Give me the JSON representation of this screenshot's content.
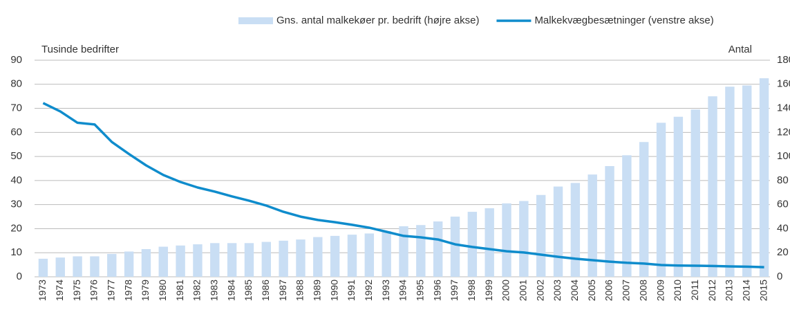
{
  "chart_data": {
    "type": "bar_line",
    "y_label": "Tusinde bedrifter",
    "y2_label": "Antal",
    "categories": [
      "1973",
      "1974",
      "1975",
      "1976",
      "1977",
      "1978",
      "1979",
      "1980",
      "1981",
      "1982",
      "1983",
      "1984",
      "1985",
      "1986",
      "1987",
      "1988",
      "1989",
      "1990",
      "1991",
      "1992",
      "1993",
      "1994",
      "1995",
      "1996",
      "1997",
      "1998",
      "1999",
      "2000",
      "2001",
      "2002",
      "2003",
      "2004",
      "2005",
      "2006",
      "2007",
      "2008",
      "2009",
      "2010",
      "2011",
      "2012",
      "2013",
      "2014",
      "2015"
    ],
    "series": [
      {
        "name": "Gns. antal malkekøer pr. bedrift (højre akse)",
        "type": "bar",
        "axis": "y2",
        "color": "#c9def4",
        "values": [
          15,
          16,
          17,
          17,
          19,
          21,
          23,
          25,
          26,
          27,
          28,
          28,
          28,
          29,
          30,
          31,
          33,
          34,
          35,
          36,
          38,
          42,
          43,
          46,
          50,
          54,
          57,
          61,
          63,
          68,
          75,
          78,
          85,
          92,
          101,
          112,
          128,
          133,
          139,
          150,
          158,
          159,
          165
        ]
      },
      {
        "name": "Malkekvægbesætninger (venstre akse)",
        "type": "line",
        "color": "#0f8ccc",
        "values": [
          72.2,
          68.7,
          64,
          63.3,
          56,
          51,
          46.3,
          42.3,
          39.4,
          37.1,
          35.4,
          33.4,
          31.6,
          29.6,
          27,
          25,
          23.6,
          22.7,
          21.6,
          20.4,
          18.7,
          17,
          16.4,
          15.5,
          13.5,
          12.4,
          11.5,
          10.6,
          10.1,
          9.2,
          8.3,
          7.5,
          6.9,
          6.3,
          5.8,
          5.5,
          4.9,
          4.7,
          4.6,
          4.5,
          4.3,
          4.2,
          4.0
        ]
      }
    ],
    "ylim": [
      0,
      90
    ],
    "yticks": [
      0,
      10,
      20,
      30,
      40,
      50,
      60,
      70,
      80,
      90
    ],
    "y2lim": [
      0,
      180
    ],
    "y2ticks": [
      0,
      20,
      40,
      60,
      80,
      100,
      120,
      140,
      160,
      180
    ],
    "grid": true,
    "legend": "top-right"
  }
}
